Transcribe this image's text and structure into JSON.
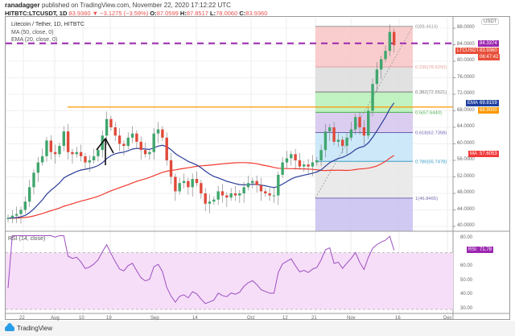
{
  "header": {
    "author": "ranadagger",
    "published_text": "published on TradingView.com, November 22, 2020 17:12:22 UTC",
    "symbol": "HITBTC:LTCUSDT, 1D",
    "last": "83.9360",
    "change_arrow": "▼",
    "change": "−3.1275 (−3.59%)",
    "o_label": "O:",
    "o": "87.0599",
    "h_label": "H:",
    "h": "87.8517",
    "l_label": "L:",
    "l": "78.0060",
    "c_label": "C:",
    "c": "83.9360"
  },
  "legend": {
    "title": "Litecoin / Tether, 1D, HITBTC",
    "ma": "MA (50, close, 0)",
    "ema": "EMA (20, close, 0)"
  },
  "price_axis": {
    "currency": "USDT",
    "ticks": [
      "88.0000",
      "84.0000",
      "80.0000",
      "76.0000",
      "72.0000",
      "68.0000",
      "64.0000",
      "60.0000",
      "56.0000",
      "52.0000",
      "48.0000",
      "44.0000",
      "40.0000"
    ],
    "tags": {
      "line": {
        "label": "",
        "value": "84.3374",
        "color": "#9c27b0"
      },
      "symbol": {
        "label": "LTCUSDT",
        "value": "83.9360",
        "color": "#e84f3a"
      },
      "countdown": {
        "value": "06:47:42",
        "color": "#e84f3a"
      },
      "ema": {
        "label": "EMA",
        "value": "69.8159",
        "color": "#1e3fa0"
      },
      "hline": {
        "value": "68.9000",
        "color": "#ff9800"
      },
      "ma": {
        "label": "MA",
        "value": "57.6053",
        "color": "#f23a3a"
      }
    }
  },
  "fib": {
    "levels": [
      {
        "ratio": "0",
        "label": "0(88.4414)",
        "price": 88.4414,
        "color": "#999999"
      },
      {
        "ratio": "0.236",
        "label": "0.236(78.6250)",
        "price": 78.625,
        "color": "#e8a0a0"
      },
      {
        "ratio": "0.382",
        "label": "0.382(72.5521)",
        "price": 72.5521,
        "color": "#777777"
      },
      {
        "ratio": "0.5",
        "label": "0.5(67.6440)",
        "price": 67.644,
        "color": "#4caf50"
      },
      {
        "ratio": "0.618",
        "label": "0.618(62.7358)",
        "price": 62.7358,
        "color": "#7060b0"
      },
      {
        "ratio": "0.786",
        "label": "0.786(55.7478)",
        "price": 55.7478,
        "color": "#3aa0c8"
      },
      {
        "ratio": "1",
        "label": "1(46.8465)",
        "price": 46.8465,
        "color": "#7a6ab0"
      }
    ]
  },
  "time_axis": {
    "ticks": [
      "22",
      "Aug",
      "10",
      "19",
      "Sep",
      "14",
      "Oct",
      "12",
      "21",
      "Nov",
      "16",
      "Dec"
    ]
  },
  "rsi": {
    "label": "RSI (14, close)",
    "ticks": [
      "80.00",
      "60.00",
      "50.00",
      "40.00",
      "30.00"
    ],
    "tag": {
      "label": "RSI",
      "value": "71.78",
      "color": "#9c27b0"
    }
  },
  "footer": {
    "brand": "TradingView"
  },
  "chart_data": {
    "type": "candlestick",
    "title": "Litecoin / Tether, 1D, HITBTC",
    "xlabel": "",
    "ylabel": "USDT",
    "ylim": [
      40,
      88
    ],
    "x_ticks": [
      "22",
      "Aug",
      "10",
      "19",
      "Sep",
      "14",
      "Oct",
      "12",
      "21",
      "Nov",
      "16",
      "Dec"
    ],
    "series": [
      {
        "name": "LTCUSDT close (approx.)",
        "values": [
          42.1,
          42.6,
          43.0,
          44.0,
          46.0,
          49.5,
          53.0,
          55.5,
          57.0,
          60.8,
          58.0,
          57.5,
          59.5,
          63.0,
          58.0,
          57.5,
          58.0,
          57.0,
          55.5,
          56.0,
          57.0,
          58.5,
          62.0,
          66.0,
          64.0,
          62.0,
          60.0,
          59.5,
          61.5,
          62.5,
          60.5,
          58.5,
          57.5,
          58.0,
          62.5,
          63.5,
          61.5,
          56.0,
          52.0,
          48.5,
          50.5,
          51.0,
          49.5,
          51.5,
          50.5,
          48.0,
          45.5,
          46.0,
          46.5,
          48.5,
          47.5,
          47.0,
          48.0,
          47.5,
          48.0,
          49.5,
          50.5,
          51.0,
          50.0,
          48.5,
          48.0,
          47.5,
          47.5,
          52.5,
          55.5,
          56.5,
          57.5,
          56.0,
          54.5,
          55.0,
          54.5,
          55.5,
          56.0,
          58.5,
          63.0,
          64.0,
          60.5,
          61.0,
          59.5,
          61.5,
          63.5,
          66.5,
          64.0,
          62.0,
          68.0,
          74.5,
          78.0,
          80.5,
          82.5,
          87.1,
          83.9
        ]
      },
      {
        "name": "EMA (20)",
        "last": 69.8159
      },
      {
        "name": "MA (50)",
        "last": 57.6053
      },
      {
        "name": "RSI (14)",
        "last": 71.78,
        "ylim": [
          25,
          85
        ]
      }
    ],
    "horizontal_lines": [
      {
        "price": 84.3374,
        "style": "dashed",
        "color": "#9c27b0"
      },
      {
        "price": 68.9,
        "style": "solid",
        "color": "#ff9800"
      }
    ],
    "fibonacci_retracement": {
      "from": 46.8465,
      "to": 88.4414
    }
  }
}
